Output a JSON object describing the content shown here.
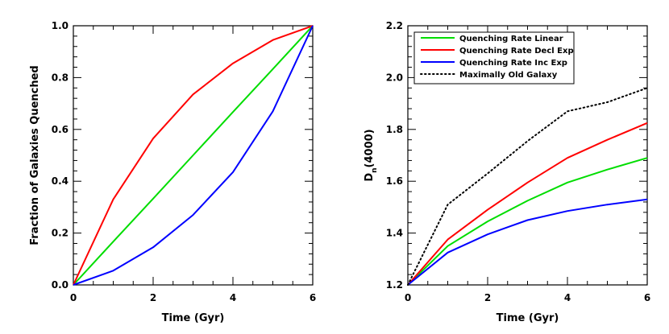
{
  "chart_data": [
    {
      "type": "line",
      "xlabel": "Time (Gyr)",
      "ylabel": "Fraction of Galaxies Quenched",
      "xlim": [
        0,
        6
      ],
      "ylim": [
        0,
        1.0
      ],
      "x_ticks": [
        "0",
        "2",
        "4",
        "6"
      ],
      "y_ticks": [
        "0.0",
        "0.2",
        "0.4",
        "0.6",
        "0.8",
        "1.0"
      ],
      "legend": false,
      "series": [
        {
          "color": "#00dd00",
          "style": "solid",
          "x": [
            0,
            1,
            2,
            3,
            4,
            5,
            6
          ],
          "values": [
            0.0,
            0.167,
            0.333,
            0.5,
            0.667,
            0.833,
            1.0
          ]
        },
        {
          "color": "#ff0000",
          "style": "solid",
          "x": [
            0,
            1,
            2,
            3,
            4,
            5,
            6
          ],
          "values": [
            0.0,
            0.33,
            0.565,
            0.735,
            0.855,
            0.945,
            1.0
          ]
        },
        {
          "color": "#0000ff",
          "style": "solid",
          "x": [
            0,
            1,
            2,
            3,
            4,
            5,
            6
          ],
          "values": [
            0.0,
            0.055,
            0.145,
            0.27,
            0.435,
            0.67,
            1.0
          ]
        }
      ]
    },
    {
      "type": "line",
      "xlabel": "Time (Gyr)",
      "ylabel": "D",
      "ylabel_sub": "n",
      "ylabel_suffix": "(4000)",
      "xlim": [
        0,
        6
      ],
      "ylim": [
        1.2,
        2.2
      ],
      "x_ticks": [
        "0",
        "2",
        "4",
        "6"
      ],
      "y_ticks": [
        "1.2",
        "1.4",
        "1.6",
        "1.8",
        "2.0",
        "2.2"
      ],
      "legend": "top-left",
      "series": [
        {
          "name": "Quenching Rate Linear",
          "color": "#00dd00",
          "style": "solid",
          "x": [
            0,
            1,
            2,
            3,
            4,
            5,
            6
          ],
          "values": [
            1.2,
            1.35,
            1.445,
            1.525,
            1.595,
            1.645,
            1.69
          ]
        },
        {
          "name": "Quenching Rate Decl Exp",
          "color": "#ff0000",
          "style": "solid",
          "x": [
            0,
            1,
            2,
            3,
            4,
            5,
            6
          ],
          "values": [
            1.2,
            1.375,
            1.49,
            1.595,
            1.69,
            1.76,
            1.825
          ]
        },
        {
          "name": "Quenching Rate Inc Exp",
          "color": "#0000ff",
          "style": "solid",
          "x": [
            0,
            1,
            2,
            3,
            4,
            5,
            6
          ],
          "values": [
            1.2,
            1.325,
            1.395,
            1.45,
            1.485,
            1.51,
            1.53
          ]
        },
        {
          "name": "Maximally Old Galaxy",
          "color": "#000000",
          "style": "dotted",
          "x": [
            0,
            1,
            2,
            3,
            4,
            5,
            6
          ],
          "values": [
            1.2,
            1.51,
            1.63,
            1.755,
            1.87,
            1.905,
            1.96
          ]
        }
      ]
    }
  ]
}
